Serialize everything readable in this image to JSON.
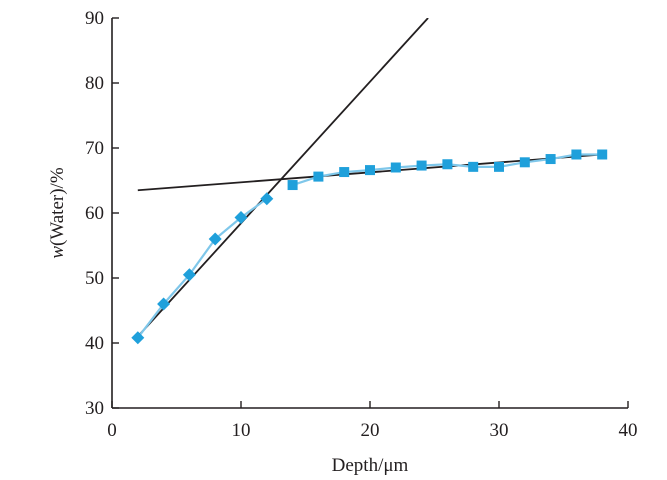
{
  "chart_data": {
    "type": "scatter",
    "title": "",
    "xlabel": "Depth/μm",
    "ylabel_italic": "w",
    "ylabel_rest": "(Water)/%",
    "xlim": [
      0,
      40
    ],
    "ylim": [
      30,
      90
    ],
    "xticks": [
      0,
      10,
      20,
      30,
      40
    ],
    "yticks": [
      30,
      40,
      50,
      60,
      70,
      80,
      90
    ],
    "grid": false,
    "legend": "none",
    "colors": {
      "data": "#1fa0db",
      "data_line": "#7fc7ea",
      "fit": "#231f20",
      "axis": "#231f20"
    },
    "series": [
      {
        "marker": "diamond",
        "x": [
          2,
          4,
          6,
          8,
          10,
          12
        ],
        "y": [
          40.8,
          46,
          50.5,
          56,
          59.3,
          62.2
        ]
      },
      {
        "marker": "square",
        "x": [
          14,
          16,
          18,
          20,
          22,
          24,
          26,
          28,
          30,
          32,
          34,
          36,
          38
        ],
        "y": [
          64.3,
          65.6,
          66.3,
          66.6,
          67,
          67.3,
          67.5,
          67.1,
          67.1,
          67.8,
          68.3,
          69,
          69
        ]
      }
    ],
    "fit_lines": [
      {
        "x": [
          2,
          24.5
        ],
        "y": [
          41,
          90
        ]
      },
      {
        "x": [
          2,
          38
        ],
        "y": [
          63.5,
          69
        ]
      }
    ]
  }
}
